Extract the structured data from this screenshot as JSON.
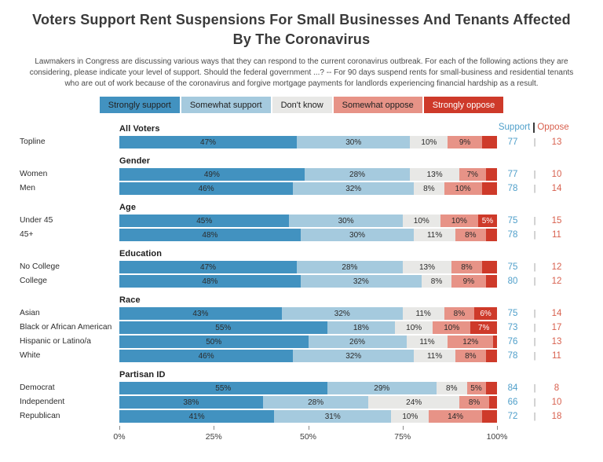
{
  "title": "Voters Support Rent Suspensions For Small Businesses And Tenants Affected By The Coronavirus",
  "subtitle": "Lawmakers in Congress are discussing various ways that they can respond to the current coronavirus outbreak. For each of the following actions they are considering, please indicate your level of support. Should the federal government ...? -- For 90 days suspend rents for small-business and residential tenants who are out of work because of the coronavirus and forgive mortgage payments for landlords experiencing financial hardship as a result.",
  "colors": {
    "strongly_support": "#4292c0",
    "somewhat_support": "#a5cade",
    "dont_know": "#e8e8e6",
    "somewhat_oppose": "#e79387",
    "strongly_oppose": "#ce3a2a",
    "support_number": "#4f9fca",
    "oppose_number": "#d8604e"
  },
  "legend": [
    {
      "label": "Strongly support",
      "color": "#4292c0",
      "text_color": "#222222"
    },
    {
      "label": "Somewhat support",
      "color": "#a5cade",
      "text_color": "#222222"
    },
    {
      "label": "Don't know",
      "color": "#e8e8e6",
      "text_color": "#222222"
    },
    {
      "label": "Somewhat oppose",
      "color": "#e79387",
      "text_color": "#222222"
    },
    {
      "label": "Strongly oppose",
      "color": "#ce3a2a",
      "text_color": "#ffffff"
    }
  ],
  "right_header": {
    "support": "Support",
    "oppose": "Oppose"
  },
  "chart_data": {
    "type": "bar",
    "stacked": true,
    "orientation": "horizontal",
    "series_names": [
      "Strongly support",
      "Somewhat support",
      "Don't know",
      "Somewhat oppose",
      "Strongly oppose"
    ],
    "series_slugs": [
      "strongly-support",
      "somewhat-support",
      "dont-know",
      "somewhat-oppose",
      "strongly-oppose"
    ],
    "label_min": 5,
    "xlim": [
      0,
      100
    ],
    "x_ticks": [
      "0%",
      "25%",
      "50%",
      "75%",
      "100%"
    ],
    "x_tick_pos": [
      0,
      25,
      50,
      75,
      100
    ],
    "groups": [
      {
        "header": "All Voters",
        "rows": [
          {
            "label": "Topline",
            "values": [
              47,
              30,
              10,
              9,
              4
            ],
            "support": 77,
            "oppose": 13
          }
        ]
      },
      {
        "header": "Gender",
        "rows": [
          {
            "label": "Women",
            "values": [
              49,
              28,
              13,
              7,
              3
            ],
            "support": 77,
            "oppose": 10
          },
          {
            "label": "Men",
            "values": [
              46,
              32,
              8,
              10,
              4
            ],
            "support": 78,
            "oppose": 14
          }
        ]
      },
      {
        "header": "Age",
        "rows": [
          {
            "label": "Under 45",
            "values": [
              45,
              30,
              10,
              10,
              5
            ],
            "support": 75,
            "oppose": 15
          },
          {
            "label": "45+",
            "values": [
              48,
              30,
              11,
              8,
              3
            ],
            "support": 78,
            "oppose": 11
          }
        ]
      },
      {
        "header": "Education",
        "rows": [
          {
            "label": "No College",
            "values": [
              47,
              28,
              13,
              8,
              4
            ],
            "support": 75,
            "oppose": 12
          },
          {
            "label": "College",
            "values": [
              48,
              32,
              8,
              9,
              3
            ],
            "support": 80,
            "oppose": 12
          }
        ]
      },
      {
        "header": "Race",
        "rows": [
          {
            "label": "Asian",
            "values": [
              43,
              32,
              11,
              8,
              6
            ],
            "support": 75,
            "oppose": 14
          },
          {
            "label": "Black or African American",
            "values": [
              55,
              18,
              10,
              10,
              7
            ],
            "support": 73,
            "oppose": 17
          },
          {
            "label": "Hispanic or Latino/a",
            "values": [
              50,
              26,
              11,
              12,
              1
            ],
            "support": 76,
            "oppose": 13
          },
          {
            "label": "White",
            "values": [
              46,
              32,
              11,
              8,
              3
            ],
            "support": 78,
            "oppose": 11
          }
        ]
      },
      {
        "header": "Partisan ID",
        "rows": [
          {
            "label": "Democrat",
            "values": [
              55,
              29,
              8,
              5,
              3
            ],
            "support": 84,
            "oppose": 8
          },
          {
            "label": "Independent",
            "values": [
              38,
              28,
              24,
              8,
              2
            ],
            "support": 66,
            "oppose": 10
          },
          {
            "label": "Republican",
            "values": [
              41,
              31,
              10,
              14,
              4
            ],
            "support": 72,
            "oppose": 18
          }
        ]
      }
    ]
  }
}
